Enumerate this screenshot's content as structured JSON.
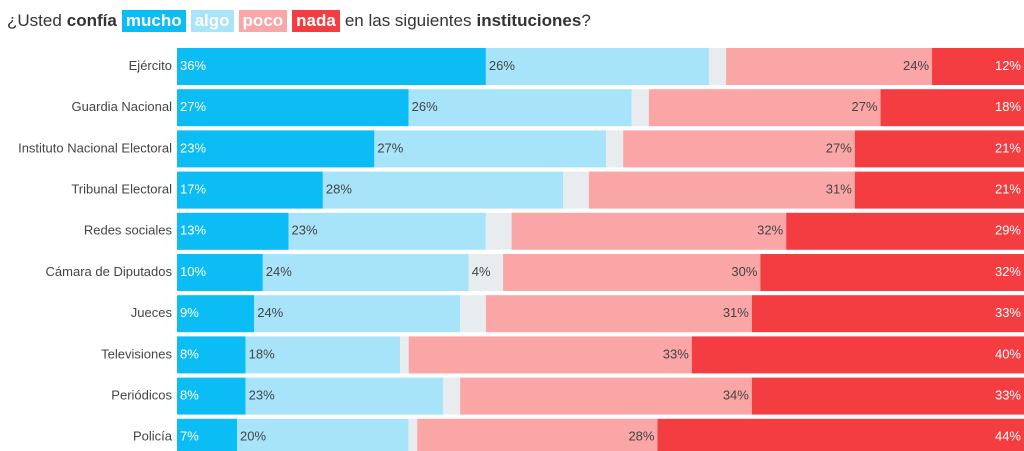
{
  "chart_data": {
    "type": "stacked-bar",
    "title": [
      "¿Usted",
      "confía",
      "en las siguientes",
      "instituciones",
      "?"
    ],
    "categories": [
      "Ejército",
      "Guardia Nacional",
      "Instituto Nacional Electoral",
      "Tribunal Electoral",
      "Redes sociales",
      "Cámara de Diputados",
      "Jueces",
      "Televisiones",
      "Periódicos",
      "Policía"
    ],
    "xlim": [
      0,
      100
    ],
    "series": [
      {
        "name": "mucho",
        "color": "#0bbdf4",
        "values": [
          36,
          27,
          23,
          17,
          13,
          10,
          9,
          8,
          8,
          7
        ],
        "value_labels": [
          "36%",
          "27%",
          "23%",
          "17%",
          "13%",
          "10%",
          "9%",
          "8%",
          "8%",
          "7%"
        ]
      },
      {
        "name": "algo",
        "color": "#a7e4f9",
        "values": [
          26,
          26,
          27,
          28,
          23,
          24,
          24,
          18,
          23,
          20
        ],
        "value_labels": [
          "26%",
          "26%",
          "27%",
          "28%",
          "23%",
          "24%",
          "24%",
          "18%",
          "23%",
          "20%"
        ]
      },
      {
        "color": "#e9ecee",
        "values": [
          2,
          2,
          2,
          3,
          3,
          4,
          3,
          1,
          2,
          1
        ],
        "value_labels": [
          null,
          null,
          null,
          null,
          null,
          "4%",
          null,
          null,
          null,
          null
        ]
      },
      {
        "name": "poco",
        "color": "#fba6a6",
        "values": [
          24,
          27,
          27,
          31,
          32,
          30,
          31,
          33,
          34,
          28
        ],
        "value_labels": [
          "24%",
          "27%",
          "27%",
          "31%",
          "32%",
          "30%",
          "31%",
          "33%",
          "34%",
          "28%"
        ]
      },
      {
        "name": "nada",
        "color": "#f33d40",
        "values": [
          12,
          18,
          21,
          21,
          29,
          32,
          33,
          40,
          33,
          44
        ],
        "value_labels": [
          "12%",
          "18%",
          "21%",
          "21%",
          "29%",
          "32%",
          "33%",
          "40%",
          "33%",
          "44%"
        ]
      }
    ]
  }
}
